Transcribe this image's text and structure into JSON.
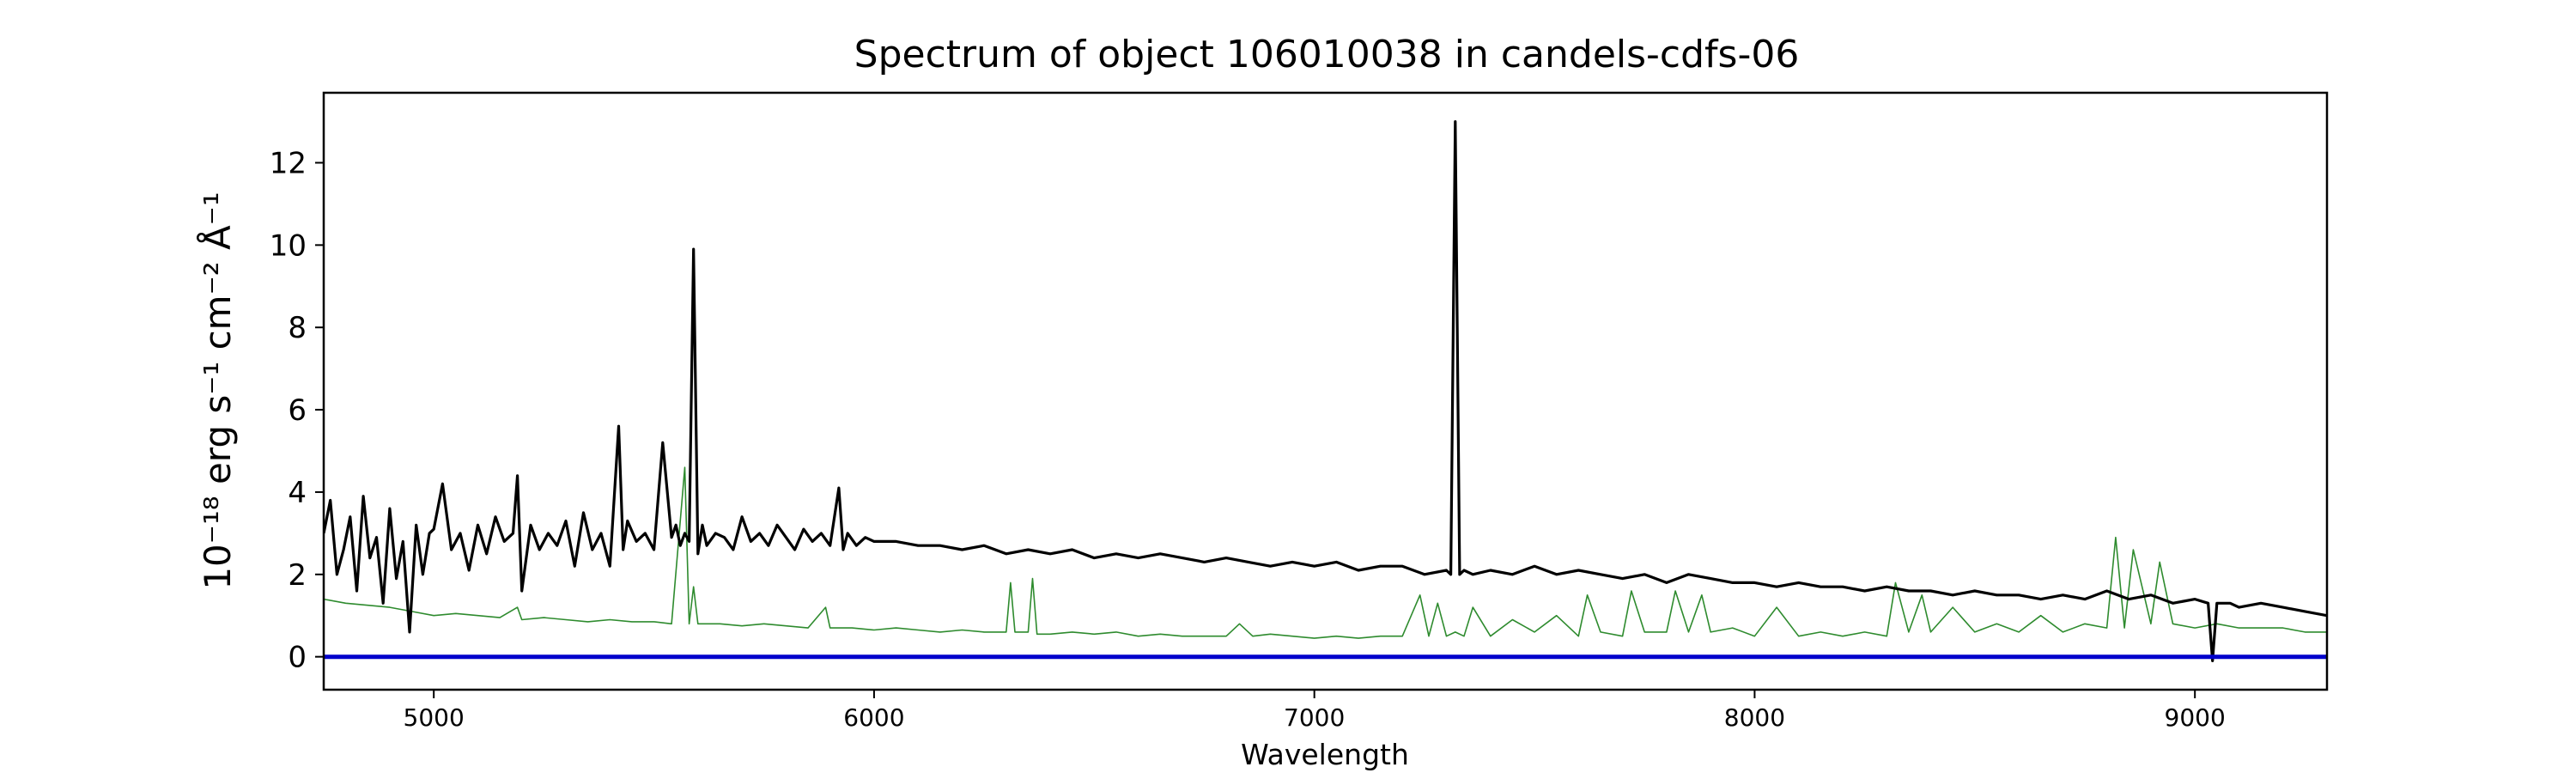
{
  "chart_data": {
    "type": "line",
    "title": "Spectrum of object 106010038 in candels-cdfs-06",
    "xlabel": "Wavelength",
    "ylabel": "10⁻¹⁸ erg s⁻¹ cm⁻² Å⁻¹",
    "xlim": [
      4750,
      9300
    ],
    "ylim": [
      -0.8,
      13.7
    ],
    "x_ticks": [
      5000,
      6000,
      7000,
      8000,
      9000
    ],
    "x_tick_labels": [
      "5000",
      "6000",
      "7000",
      "8000",
      "9000"
    ],
    "y_ticks": [
      0,
      2,
      4,
      6,
      8,
      10,
      12
    ],
    "y_tick_labels": [
      "0",
      "2",
      "4",
      "6",
      "8",
      "10",
      "12"
    ],
    "grid": false,
    "series": [
      {
        "color": "#000000",
        "role": "flux",
        "x": [
          4750,
          4765,
          4780,
          4795,
          4810,
          4825,
          4840,
          4855,
          4870,
          4885,
          4900,
          4915,
          4930,
          4945,
          4960,
          4975,
          4990,
          5000,
          5020,
          5040,
          5060,
          5080,
          5100,
          5120,
          5140,
          5160,
          5180,
          5190,
          5200,
          5220,
          5240,
          5260,
          5280,
          5300,
          5320,
          5340,
          5360,
          5380,
          5400,
          5420,
          5430,
          5440,
          5460,
          5480,
          5500,
          5520,
          5540,
          5550,
          5560,
          5570,
          5580,
          5590,
          5600,
          5610,
          5620,
          5640,
          5660,
          5680,
          5700,
          5720,
          5740,
          5760,
          5780,
          5800,
          5820,
          5840,
          5860,
          5880,
          5900,
          5920,
          5930,
          5940,
          5960,
          5980,
          6000,
          6050,
          6100,
          6150,
          6200,
          6250,
          6300,
          6350,
          6400,
          6450,
          6500,
          6550,
          6600,
          6650,
          6700,
          6750,
          6800,
          6850,
          6900,
          6950,
          7000,
          7050,
          7100,
          7150,
          7200,
          7250,
          7300,
          7310,
          7320,
          7330,
          7340,
          7360,
          7400,
          7450,
          7500,
          7550,
          7600,
          7650,
          7700,
          7750,
          7800,
          7850,
          7900,
          7950,
          8000,
          8050,
          8100,
          8150,
          8200,
          8250,
          8300,
          8350,
          8400,
          8450,
          8500,
          8550,
          8600,
          8650,
          8700,
          8750,
          8800,
          8850,
          8900,
          8950,
          9000,
          9030,
          9040,
          9050,
          9080,
          9100,
          9150,
          9200,
          9250,
          9300
        ],
        "y": [
          3.0,
          3.8,
          2.0,
          2.6,
          3.4,
          1.6,
          3.9,
          2.4,
          2.9,
          1.3,
          3.6,
          1.9,
          2.8,
          0.6,
          3.2,
          2.0,
          3.0,
          3.1,
          4.2,
          2.6,
          3.0,
          2.1,
          3.2,
          2.5,
          3.4,
          2.8,
          3.0,
          4.4,
          1.6,
          3.2,
          2.6,
          3.0,
          2.7,
          3.3,
          2.2,
          3.5,
          2.6,
          3.0,
          2.2,
          5.6,
          2.6,
          3.3,
          2.8,
          3.0,
          2.6,
          5.2,
          2.9,
          3.2,
          2.7,
          3.0,
          2.8,
          9.9,
          2.5,
          3.2,
          2.7,
          3.0,
          2.9,
          2.6,
          3.4,
          2.8,
          3.0,
          2.7,
          3.2,
          2.9,
          2.6,
          3.1,
          2.8,
          3.0,
          2.7,
          4.1,
          2.6,
          3.0,
          2.7,
          2.9,
          2.8,
          2.8,
          2.7,
          2.7,
          2.6,
          2.7,
          2.5,
          2.6,
          2.5,
          2.6,
          2.4,
          2.5,
          2.4,
          2.5,
          2.4,
          2.3,
          2.4,
          2.3,
          2.2,
          2.3,
          2.2,
          2.3,
          2.1,
          2.2,
          2.2,
          2.0,
          2.1,
          2.0,
          13.0,
          2.0,
          2.1,
          2.0,
          2.1,
          2.0,
          2.2,
          2.0,
          2.1,
          2.0,
          1.9,
          2.0,
          1.8,
          2.0,
          1.9,
          1.8,
          1.8,
          1.7,
          1.8,
          1.7,
          1.7,
          1.6,
          1.7,
          1.6,
          1.6,
          1.5,
          1.6,
          1.5,
          1.5,
          1.4,
          1.5,
          1.4,
          1.6,
          1.4,
          1.5,
          1.3,
          1.4,
          1.3,
          -0.1,
          1.3,
          1.3,
          1.2,
          1.3,
          1.2,
          1.1,
          1.0
        ]
      },
      {
        "color": "#2e8b2e",
        "role": "error",
        "x": [
          4750,
          4800,
          4850,
          4900,
          4950,
          5000,
          5050,
          5100,
          5150,
          5190,
          5200,
          5250,
          5300,
          5350,
          5400,
          5450,
          5500,
          5540,
          5570,
          5580,
          5590,
          5600,
          5650,
          5700,
          5750,
          5800,
          5850,
          5890,
          5900,
          5950,
          6000,
          6050,
          6100,
          6150,
          6200,
          6250,
          6300,
          6310,
          6320,
          6350,
          6360,
          6370,
          6400,
          6450,
          6500,
          6550,
          6600,
          6650,
          6700,
          6750,
          6800,
          6830,
          6860,
          6900,
          6950,
          7000,
          7050,
          7100,
          7150,
          7200,
          7240,
          7260,
          7280,
          7300,
          7320,
          7340,
          7360,
          7400,
          7450,
          7500,
          7550,
          7600,
          7620,
          7650,
          7700,
          7720,
          7750,
          7800,
          7820,
          7850,
          7880,
          7900,
          7950,
          8000,
          8050,
          8100,
          8150,
          8200,
          8250,
          8300,
          8320,
          8350,
          8380,
          8400,
          8450,
          8500,
          8550,
          8600,
          8650,
          8700,
          8750,
          8800,
          8820,
          8840,
          8860,
          8900,
          8920,
          8950,
          9000,
          9050,
          9100,
          9150,
          9200,
          9250,
          9300
        ],
        "y": [
          1.4,
          1.3,
          1.25,
          1.2,
          1.1,
          1.0,
          1.05,
          1.0,
          0.95,
          1.2,
          0.9,
          0.95,
          0.9,
          0.85,
          0.9,
          0.85,
          0.85,
          0.8,
          4.6,
          0.8,
          1.7,
          0.8,
          0.8,
          0.75,
          0.8,
          0.75,
          0.7,
          1.2,
          0.7,
          0.7,
          0.65,
          0.7,
          0.65,
          0.6,
          0.65,
          0.6,
          0.6,
          1.8,
          0.6,
          0.6,
          1.9,
          0.55,
          0.55,
          0.6,
          0.55,
          0.6,
          0.5,
          0.55,
          0.5,
          0.5,
          0.5,
          0.8,
          0.5,
          0.55,
          0.5,
          0.45,
          0.5,
          0.45,
          0.5,
          0.5,
          1.5,
          0.5,
          1.3,
          0.5,
          0.6,
          0.5,
          1.2,
          0.5,
          0.9,
          0.6,
          1.0,
          0.5,
          1.5,
          0.6,
          0.5,
          1.6,
          0.6,
          0.6,
          1.6,
          0.6,
          1.5,
          0.6,
          0.7,
          0.5,
          1.2,
          0.5,
          0.6,
          0.5,
          0.6,
          0.5,
          1.8,
          0.6,
          1.5,
          0.6,
          1.2,
          0.6,
          0.8,
          0.6,
          1.0,
          0.6,
          0.8,
          0.7,
          2.9,
          0.7,
          2.6,
          0.8,
          2.3,
          0.8,
          0.7,
          0.8,
          0.7,
          0.7,
          0.7,
          0.6,
          0.6
        ]
      },
      {
        "color": "#0000cc",
        "role": "zero-line",
        "x": [
          4750,
          9300
        ],
        "y": [
          0,
          0
        ]
      }
    ]
  }
}
